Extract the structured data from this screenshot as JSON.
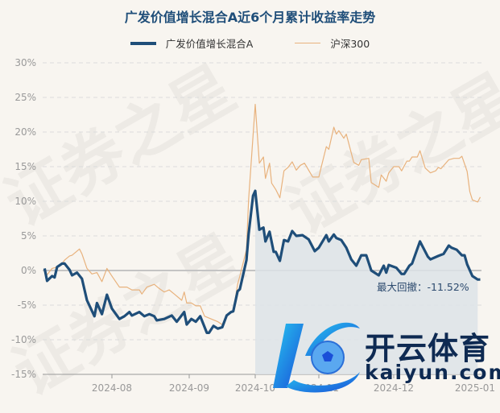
{
  "title": "广发价值增长混合A近6个月累计收益率走势",
  "legend": {
    "fund": "广发价值增长混合A",
    "index": "沪深300"
  },
  "max_drawdown_label": "最大回撤：",
  "max_drawdown_value": "-11.52%",
  "watermark": "证券之星",
  "logo": {
    "cn": "开云体育",
    "en": "kaiyun.com"
  },
  "colors": {
    "fund": "#1f4e79",
    "index": "#e8b27d",
    "title": "#1f4e79",
    "background": "#f8f5f0",
    "drawdown_fill": "#dde3e8"
  },
  "chart_data": {
    "type": "line",
    "title": "广发价值增长混合A近6个月累计收益率走势",
    "xlabel": "",
    "ylabel": "",
    "ylim": [
      -15,
      30
    ],
    "yticks": [
      30,
      25,
      20,
      15,
      10,
      5,
      0,
      -5,
      -10,
      -15
    ],
    "ytick_labels": [
      "30%",
      "25%",
      "20%",
      "15%",
      "10%",
      "5%",
      "0%",
      "-5%",
      "-10%",
      "-15%"
    ],
    "xticks": [
      "2024-08-01",
      "2024-09-01",
      "2024-10-01",
      "2024-11-01",
      "2024-12-01",
      "2025-01-01"
    ],
    "xtick_labels": [
      "2024-08",
      "2024-09",
      "2024-10",
      "2024-11",
      "2024-12",
      "2025-01"
    ],
    "grid": "horizontal dashed",
    "legend_position": "top",
    "drawdown_range": [
      "2024-10-01",
      "2025-01-02"
    ],
    "series": [
      {
        "name": "广发价值增长混合A",
        "unit": "%",
        "points": [
          [
            "2024-07-05",
            0.3
          ],
          [
            "2024-07-06",
            -1.5
          ],
          [
            "2024-07-08",
            -0.8
          ],
          [
            "2024-07-09",
            -1.0
          ],
          [
            "2024-07-10",
            0.5
          ],
          [
            "2024-07-12",
            1.0
          ],
          [
            "2024-07-13",
            1.0
          ],
          [
            "2024-07-15",
            0.1
          ],
          [
            "2024-07-16",
            -0.7
          ],
          [
            "2024-07-18",
            -0.3
          ],
          [
            "2024-07-20",
            -1.2
          ],
          [
            "2024-07-22",
            -4.3
          ],
          [
            "2024-07-25",
            -6.6
          ],
          [
            "2024-07-26",
            -4.7
          ],
          [
            "2024-07-28",
            -6.3
          ],
          [
            "2024-07-30",
            -3.5
          ],
          [
            "2024-08-01",
            -5.5
          ],
          [
            "2024-08-04",
            -7.0
          ],
          [
            "2024-08-06",
            -6.6
          ],
          [
            "2024-08-08",
            -6.0
          ],
          [
            "2024-08-09",
            -6.5
          ],
          [
            "2024-08-12",
            -6.0
          ],
          [
            "2024-08-14",
            -6.6
          ],
          [
            "2024-08-16",
            -6.3
          ],
          [
            "2024-08-18",
            -6.6
          ],
          [
            "2024-08-19",
            -7.2
          ],
          [
            "2024-08-22",
            -7.0
          ],
          [
            "2024-08-25",
            -6.5
          ],
          [
            "2024-08-27",
            -7.4
          ],
          [
            "2024-08-30",
            -6.0
          ],
          [
            "2024-08-31",
            -7.8
          ],
          [
            "2024-09-02",
            -7.0
          ],
          [
            "2024-09-04",
            -7.4
          ],
          [
            "2024-09-06",
            -6.6
          ],
          [
            "2024-09-09",
            -9.0
          ],
          [
            "2024-09-10",
            -9.0
          ],
          [
            "2024-09-12",
            -8.0
          ],
          [
            "2024-09-14",
            -8.4
          ],
          [
            "2024-09-16",
            -8.2
          ],
          [
            "2024-09-18",
            -6.5
          ],
          [
            "2024-09-20",
            -6.0
          ],
          [
            "2024-09-21",
            -5.9
          ],
          [
            "2024-09-23",
            -3.0
          ],
          [
            "2024-09-24",
            -2.7
          ],
          [
            "2024-09-27",
            1.5
          ],
          [
            "2024-09-28",
            5.3
          ],
          [
            "2024-09-30",
            10.8
          ],
          [
            "2024-10-01",
            11.5
          ],
          [
            "2024-10-03",
            5.9
          ],
          [
            "2024-10-05",
            6.2
          ],
          [
            "2024-10-06",
            4.2
          ],
          [
            "2024-10-08",
            5.6
          ],
          [
            "2024-10-10",
            2.7
          ],
          [
            "2024-10-11",
            2.7
          ],
          [
            "2024-10-13",
            1.4
          ],
          [
            "2024-10-15",
            4.4
          ],
          [
            "2024-10-17",
            4.2
          ],
          [
            "2024-10-19",
            5.7
          ],
          [
            "2024-10-21",
            5.0
          ],
          [
            "2024-10-24",
            5.1
          ],
          [
            "2024-10-27",
            4.5
          ],
          [
            "2024-10-30",
            2.8
          ],
          [
            "2024-11-01",
            3.3
          ],
          [
            "2024-11-04",
            5.1
          ],
          [
            "2024-11-05",
            4.2
          ],
          [
            "2024-11-07",
            5.2
          ],
          [
            "2024-11-08",
            4.7
          ],
          [
            "2024-11-10",
            4.4
          ],
          [
            "2024-11-12",
            3.3
          ],
          [
            "2024-11-14",
            1.6
          ],
          [
            "2024-11-16",
            0.7
          ],
          [
            "2024-11-18",
            2.2
          ],
          [
            "2024-11-20",
            2.2
          ],
          [
            "2024-11-22",
            0.0
          ],
          [
            "2024-11-25",
            -0.7
          ],
          [
            "2024-11-27",
            0.7
          ],
          [
            "2024-11-28",
            -0.3
          ],
          [
            "2024-11-29",
            0.8
          ],
          [
            "2024-12-02",
            0.4
          ],
          [
            "2024-12-04",
            -0.5
          ],
          [
            "2024-12-05",
            -0.5
          ],
          [
            "2024-12-07",
            0.7
          ],
          [
            "2024-12-08",
            1.0
          ],
          [
            "2024-12-11",
            4.2
          ],
          [
            "2024-12-14",
            2.0
          ],
          [
            "2024-12-15",
            1.6
          ],
          [
            "2024-12-18",
            2.1
          ],
          [
            "2024-12-20",
            2.4
          ],
          [
            "2024-12-22",
            3.6
          ],
          [
            "2024-12-23",
            3.3
          ],
          [
            "2024-12-25",
            3.0
          ],
          [
            "2024-12-27",
            2.2
          ],
          [
            "2024-12-28",
            2.2
          ],
          [
            "2024-12-29",
            0.9
          ],
          [
            "2024-12-31",
            -0.8
          ],
          [
            "2025-01-02",
            -1.3
          ],
          [
            "2025-01-03",
            -1.3
          ]
        ]
      },
      {
        "name": "沪深300",
        "unit": "%",
        "points": [
          [
            "2024-07-05",
            -0.1
          ],
          [
            "2024-07-06",
            -0.6
          ],
          [
            "2024-07-08",
            0.3
          ],
          [
            "2024-07-10",
            0.5
          ],
          [
            "2024-07-12",
            1.0
          ],
          [
            "2024-07-13",
            1.5
          ],
          [
            "2024-07-15",
            2.1
          ],
          [
            "2024-07-16",
            2.2
          ],
          [
            "2024-07-19",
            3.1
          ],
          [
            "2024-07-20",
            2.4
          ],
          [
            "2024-07-22",
            0.3
          ],
          [
            "2024-07-24",
            -0.5
          ],
          [
            "2024-07-26",
            -0.3
          ],
          [
            "2024-07-28",
            -1.6
          ],
          [
            "2024-07-30",
            0.3
          ],
          [
            "2024-08-01",
            -0.8
          ],
          [
            "2024-08-04",
            -2.4
          ],
          [
            "2024-08-07",
            -2.4
          ],
          [
            "2024-08-09",
            -2.8
          ],
          [
            "2024-08-12",
            -2.8
          ],
          [
            "2024-08-13",
            -3.4
          ],
          [
            "2024-08-15",
            -2.4
          ],
          [
            "2024-08-18",
            -2.0
          ],
          [
            "2024-08-20",
            -2.6
          ],
          [
            "2024-08-22",
            -3.1
          ],
          [
            "2024-08-24",
            -2.8
          ],
          [
            "2024-08-26",
            -3.4
          ],
          [
            "2024-08-29",
            -4.3
          ],
          [
            "2024-08-30",
            -3.1
          ],
          [
            "2024-08-31",
            -4.7
          ],
          [
            "2024-09-02",
            -4.7
          ],
          [
            "2024-09-04",
            -5.1
          ],
          [
            "2024-09-06",
            -5.1
          ],
          [
            "2024-09-08",
            -6.6
          ],
          [
            "2024-09-11",
            -7.0
          ],
          [
            "2024-09-14",
            -7.4
          ],
          [
            "2024-09-16",
            -7.8
          ],
          [
            "2024-09-18",
            -6.6
          ],
          [
            "2024-09-21",
            -5.9
          ],
          [
            "2024-09-23",
            -2.0
          ],
          [
            "2024-09-24",
            -0.8
          ],
          [
            "2024-09-27",
            3.0
          ],
          [
            "2024-09-28",
            10.3
          ],
          [
            "2024-10-01",
            24.0
          ],
          [
            "2024-10-03",
            15.5
          ],
          [
            "2024-10-05",
            16.4
          ],
          [
            "2024-10-06",
            13.3
          ],
          [
            "2024-10-08",
            15.5
          ],
          [
            "2024-10-09",
            12.6
          ],
          [
            "2024-10-11",
            11.7
          ],
          [
            "2024-10-13",
            10.5
          ],
          [
            "2024-10-15",
            14.4
          ],
          [
            "2024-10-17",
            14.9
          ],
          [
            "2024-10-19",
            15.7
          ],
          [
            "2024-10-21",
            14.5
          ],
          [
            "2024-10-23",
            15.2
          ],
          [
            "2024-10-25",
            15.5
          ],
          [
            "2024-10-29",
            13.5
          ],
          [
            "2024-11-01",
            13.5
          ],
          [
            "2024-11-02",
            15.0
          ],
          [
            "2024-11-04",
            17.9
          ],
          [
            "2024-11-05",
            17.5
          ],
          [
            "2024-11-07",
            20.7
          ],
          [
            "2024-11-08",
            19.7
          ],
          [
            "2024-11-09",
            20.2
          ],
          [
            "2024-11-11",
            19.1
          ],
          [
            "2024-11-12",
            19.7
          ],
          [
            "2024-11-15",
            15.6
          ],
          [
            "2024-11-17",
            15.2
          ],
          [
            "2024-11-18",
            16.0
          ],
          [
            "2024-11-21",
            16.2
          ],
          [
            "2024-11-22",
            12.7
          ],
          [
            "2024-11-25",
            12.0
          ],
          [
            "2024-11-26",
            13.8
          ],
          [
            "2024-11-28",
            12.9
          ],
          [
            "2024-11-29",
            14.1
          ],
          [
            "2024-12-01",
            15.0
          ],
          [
            "2024-12-03",
            15.0
          ],
          [
            "2024-12-04",
            14.4
          ],
          [
            "2024-12-06",
            15.8
          ],
          [
            "2024-12-07",
            15.8
          ],
          [
            "2024-12-08",
            16.4
          ],
          [
            "2024-12-10",
            16.4
          ],
          [
            "2024-12-11",
            17.3
          ],
          [
            "2024-12-13",
            14.8
          ],
          [
            "2024-12-15",
            14.1
          ],
          [
            "2024-12-17",
            14.4
          ],
          [
            "2024-12-18",
            14.9
          ],
          [
            "2024-12-19",
            14.7
          ],
          [
            "2024-12-22",
            16.0
          ],
          [
            "2024-12-24",
            16.2
          ],
          [
            "2024-12-26",
            16.2
          ],
          [
            "2024-12-27",
            16.5
          ],
          [
            "2024-12-29",
            14.3
          ],
          [
            "2024-12-30",
            11.4
          ],
          [
            "2024-12-31",
            10.2
          ],
          [
            "2025-01-02",
            9.9
          ],
          [
            "2025-01-03",
            10.6
          ]
        ]
      }
    ]
  }
}
